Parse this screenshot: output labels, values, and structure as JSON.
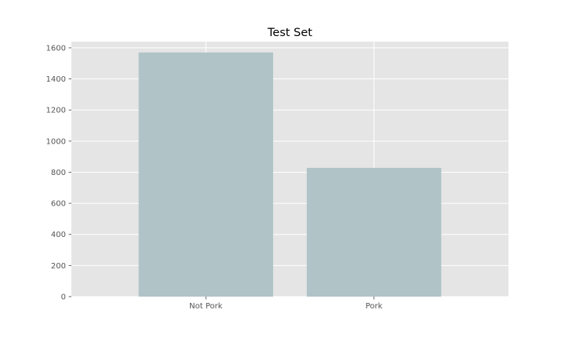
{
  "chart_data": {
    "type": "bar",
    "title": "Test Set",
    "xlabel": "",
    "ylabel": "",
    "categories": [
      "Not Pork",
      "Pork"
    ],
    "values": [
      1570,
      828
    ],
    "ylim": [
      0,
      1640
    ],
    "yticks": [
      0,
      200,
      400,
      600,
      800,
      1000,
      1200,
      1400,
      1600
    ],
    "grid": true,
    "legend": "none",
    "colors": {
      "bar": "#b0c4c8",
      "plot_background": "#e5e5e5",
      "grid": "#ffffff",
      "text": "#555555"
    }
  }
}
